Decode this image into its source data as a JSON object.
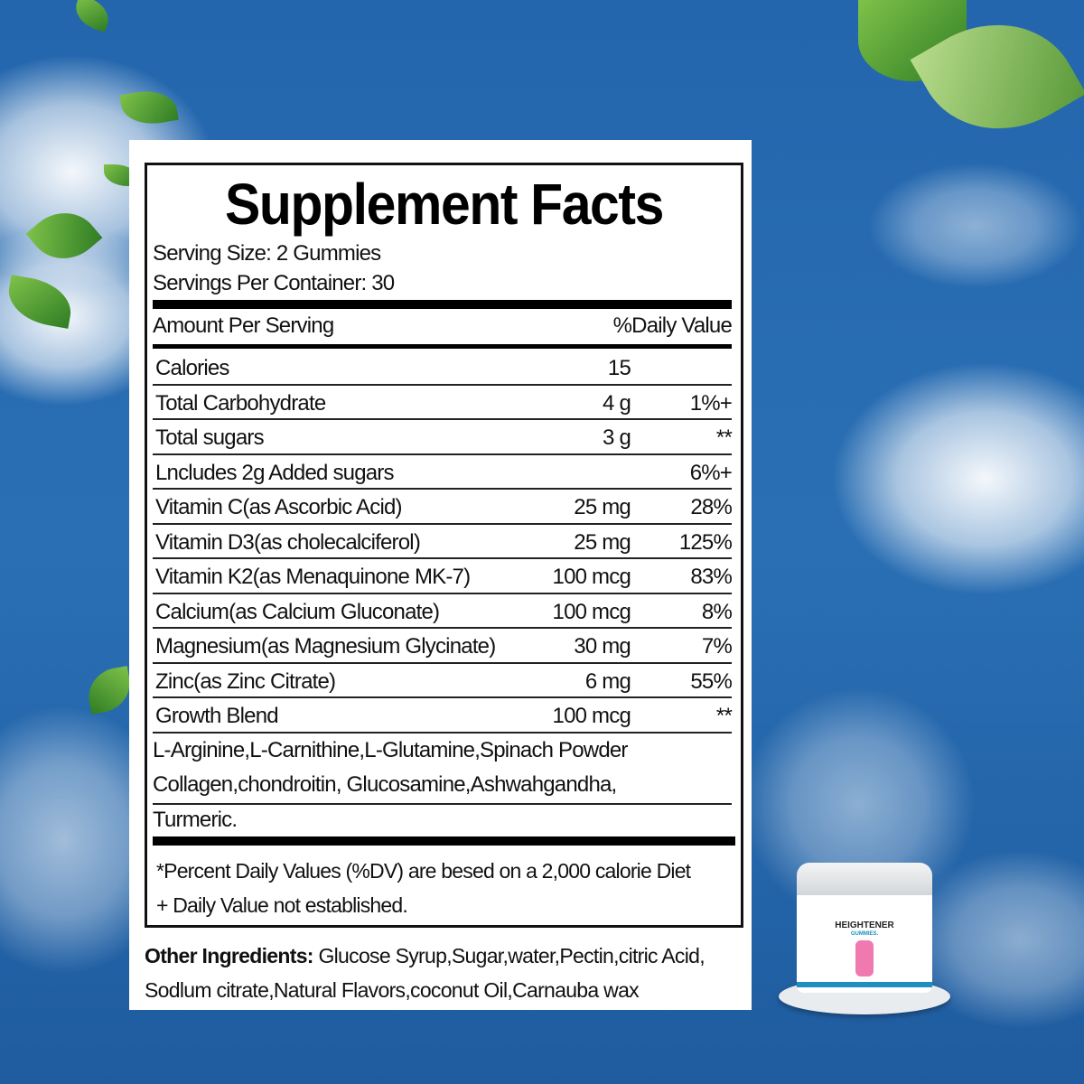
{
  "label": {
    "title": "Supplement Facts",
    "serving_size": "Serving Size: 2 Gummies",
    "servings_per_container": "Servings Per Container: 30",
    "amount_header": "Amount Per Serving",
    "dv_header": "%Daily Value",
    "rows": [
      {
        "name": "Calories",
        "amount": "15",
        "dv": ""
      },
      {
        "name": "Total Carbohydrate",
        "amount": "4 g",
        "dv": "1%+"
      },
      {
        "name": "Total sugars",
        "amount": "3 g",
        "dv": "**"
      },
      {
        "name": "Lncludes 2g Added sugars",
        "amount": "",
        "dv": "6%+"
      },
      {
        "name": "Vitamin C(as Ascorbic Acid)",
        "amount": "25 mg",
        "dv": "28%"
      },
      {
        "name": "Vitamin D3(as cholecalciferol)",
        "amount": "25 mg",
        "dv": "125%"
      },
      {
        "name": "Vitamin K2(as Menaquinone MK-7)",
        "amount": "100 mcg",
        "dv": "83%"
      },
      {
        "name": "Calcium(as Calcium Gluconate)",
        "amount": "100 mcg",
        "dv": "8%"
      },
      {
        "name": "Magnesium(as Magnesium Glycinate)",
        "amount": "30 mg",
        "dv": "7%"
      },
      {
        "name": "Zinc(as Zinc Citrate)",
        "amount": "6 mg",
        "dv": "55%"
      },
      {
        "name": "Growth Blend",
        "amount": "100 mcg",
        "dv": "**"
      }
    ],
    "blend_lines": [
      "L-Arginine,L-Carnithine,L-Glutamine,Spinach Powder",
      "Collagen,chondroitin, Glucosamine,Ashwahgandha,",
      "Turmeric."
    ],
    "footnote1": "*Percent Daily Values (%DV) are besed on a 2,000 calorie Diet",
    "footnote2": "+ Daily Value not established.",
    "other_label": "Other Ingredients:",
    "other_line1": " Glucose Syrup,Sugar,water,Pectin,citric Acid,",
    "other_line2": "Sodlum citrate,Natural Flavors,coconut Oil,Carnauba wax"
  },
  "product": {
    "brand": "HEIGHTENER",
    "sub": "GUMMIES."
  },
  "colors": {
    "sky": "#2a6fb4",
    "label_bg": "#ffffff",
    "text": "#111111",
    "accent": "#1f8fc0"
  }
}
